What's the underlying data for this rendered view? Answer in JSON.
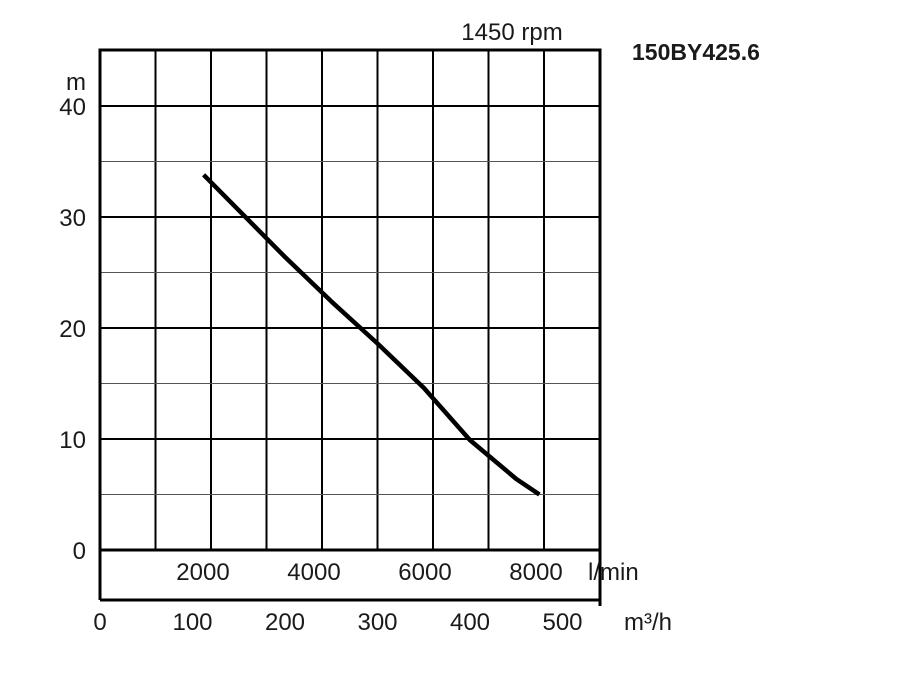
{
  "chart_data": {
    "type": "line",
    "title": "150BY425.6",
    "subtitle": "1450 rpm",
    "ylabel": "m",
    "xlabel_lmin": "l/min",
    "xlabel_m3h": "m³/h",
    "ylim": [
      0,
      45
    ],
    "xlim_m3h": [
      0,
      540
    ],
    "grid": true,
    "y_ticks": [
      "0",
      "10",
      "20",
      "30",
      "40"
    ],
    "x_ticks_lmin": [
      {
        "value": 2000,
        "label": "2000"
      },
      {
        "value": 4000,
        "label": "4000"
      },
      {
        "value": 6000,
        "label": "6000"
      },
      {
        "value": 8000,
        "label": "8000"
      }
    ],
    "x_ticks_m3h": [
      {
        "value": 0,
        "label": "0"
      },
      {
        "value": 100,
        "label": "100"
      },
      {
        "value": 200,
        "label": "200"
      },
      {
        "value": 300,
        "label": "300"
      },
      {
        "value": 400,
        "label": "400"
      },
      {
        "value": 500,
        "label": "500"
      }
    ],
    "series": [
      {
        "x": [
          112,
          150,
          200,
          250,
          300,
          350,
          400,
          450,
          475
        ],
        "y": [
          33.8,
          30.6,
          26.4,
          22.4,
          18.6,
          14.6,
          9.9,
          6.4,
          5.0
        ]
      }
    ]
  }
}
